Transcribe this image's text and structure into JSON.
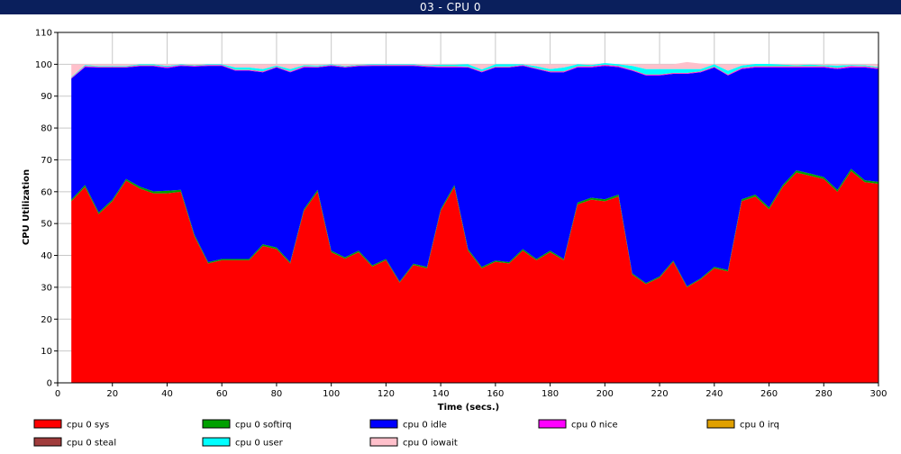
{
  "window": {
    "title": "03 - CPU 0"
  },
  "chart_data": {
    "type": "area",
    "stacked": true,
    "title": "03 - CPU 0",
    "xlabel": "Time (secs.)",
    "ylabel": "CPU Utilization",
    "xlim": [
      0,
      300
    ],
    "ylim": [
      0,
      110
    ],
    "xticks": [
      0,
      20,
      40,
      60,
      80,
      100,
      120,
      140,
      160,
      180,
      200,
      220,
      240,
      260,
      280,
      300
    ],
    "yticks": [
      0,
      10,
      20,
      30,
      40,
      50,
      60,
      70,
      80,
      90,
      100,
      110
    ],
    "grid": true,
    "legend_position": "bottom",
    "x": [
      5,
      10,
      15,
      20,
      25,
      30,
      35,
      40,
      45,
      50,
      55,
      60,
      65,
      70,
      75,
      80,
      85,
      90,
      95,
      100,
      105,
      110,
      115,
      120,
      125,
      130,
      135,
      140,
      145,
      150,
      155,
      160,
      165,
      170,
      175,
      180,
      185,
      190,
      195,
      200,
      205,
      210,
      215,
      220,
      225,
      230,
      235,
      240,
      245,
      250,
      255,
      260,
      265,
      270,
      275,
      280,
      285,
      290,
      295,
      300
    ],
    "series": [
      {
        "name": "cpu 0 sys",
        "color": "#ff0000",
        "values": [
          57,
          61.5,
          53,
          57,
          63.5,
          61,
          59.5,
          59.5,
          60,
          46,
          37.5,
          38.5,
          38.5,
          38.5,
          43,
          42,
          37.5,
          54,
          60,
          41,
          39,
          41,
          36.5,
          38.5,
          31.5,
          37,
          36,
          54,
          61.5,
          41.5,
          36,
          38,
          37.5,
          41.5,
          38.5,
          41,
          38.5,
          56,
          57.5,
          57,
          58.5,
          34,
          31,
          33,
          38,
          30,
          32.5,
          36,
          35,
          57,
          58.5,
          54.5,
          61.5,
          66,
          65,
          64,
          60,
          66.5,
          63,
          62.5
        ]
      },
      {
        "name": "cpu 0 softirq",
        "color": "#00a000",
        "values": [
          0.5,
          0.6,
          0.5,
          0.5,
          0.5,
          0.6,
          0.6,
          0.8,
          0.6,
          0.5,
          0.4,
          0.4,
          0.4,
          0.4,
          0.5,
          0.5,
          0.4,
          0.5,
          0.6,
          0.5,
          0.4,
          0.5,
          0.4,
          0.4,
          0.3,
          0.4,
          0.4,
          0.5,
          0.6,
          0.5,
          0.4,
          0.4,
          0.4,
          0.5,
          0.4,
          0.5,
          0.4,
          0.6,
          0.6,
          0.6,
          0.6,
          0.4,
          0.3,
          0.4,
          0.4,
          0.3,
          0.3,
          0.4,
          0.4,
          0.6,
          0.6,
          0.6,
          0.6,
          0.7,
          0.7,
          0.6,
          0.6,
          0.7,
          0.6,
          0.6
        ]
      },
      {
        "name": "cpu 0 idle",
        "color": "#0000ff",
        "values": [
          38,
          37,
          45.5,
          41.5,
          35,
          37.8,
          39.3,
          38.5,
          38.9,
          52.8,
          61.6,
          60.6,
          59.1,
          59.1,
          54,
          56.5,
          59.6,
          44.5,
          38.4,
          58,
          59.6,
          57.9,
          62.6,
          60.6,
          67.7,
          62.1,
          62.8,
          44.5,
          36.9,
          57,
          61.1,
          60.6,
          61.1,
          57.5,
          59.6,
          56,
          58.6,
          42.4,
          40.9,
          41.9,
          40,
          63.6,
          65.2,
          63.1,
          58.6,
          66.7,
          64.7,
          62.6,
          61.1,
          40.9,
          39.9,
          43.9,
          36.9,
          32.3,
          33.3,
          34.4,
          37.9,
          31.8,
          35.4,
          35.4
        ]
      },
      {
        "name": "cpu 0 nice",
        "color": "#ff00ff",
        "values": [
          0.2,
          0.3,
          0.2,
          0.2,
          0.2,
          0.2,
          0.2,
          0.3,
          0.2,
          0.2,
          0.2,
          0.2,
          0.2,
          0.2,
          0.2,
          0.2,
          0.2,
          0.3,
          0.2,
          0.2,
          0.2,
          0.2,
          0.2,
          0.2,
          0.2,
          0.2,
          0.2,
          0.3,
          0.3,
          0.2,
          0.2,
          0.2,
          0.2,
          0.2,
          0.2,
          0.2,
          0.2,
          0.3,
          0.3,
          0.3,
          0.3,
          0.2,
          0.2,
          0.2,
          0.2,
          0.2,
          0.2,
          0.2,
          0.2,
          0.3,
          0.3,
          0.3,
          0.3,
          0.3,
          0.3,
          0.3,
          0.3,
          0.4,
          0.3,
          0.3
        ]
      },
      {
        "name": "cpu 0 irq",
        "color": "#e0a000",
        "values": [
          0.1,
          0.1,
          0.1,
          0.1,
          0.1,
          0.1,
          0.1,
          0.1,
          0.1,
          0.1,
          0.1,
          0.1,
          0.1,
          0.1,
          0.1,
          0.1,
          0.1,
          0.1,
          0.1,
          0.1,
          0.1,
          0.1,
          0.1,
          0.1,
          0.1,
          0.1,
          0.1,
          0.1,
          0.1,
          0.1,
          0.1,
          0.1,
          0.1,
          0.1,
          0.1,
          0.1,
          0.1,
          0.1,
          0.1,
          0.1,
          0.1,
          0.1,
          0.1,
          0.1,
          0.1,
          0.1,
          0.1,
          0.1,
          0.1,
          0.1,
          0.1,
          0.1,
          0.1,
          0.1,
          0.1,
          0.1,
          0.1,
          0.1,
          0.1,
          0.1
        ]
      },
      {
        "name": "cpu 0 steal",
        "color": "#a03c3c",
        "values": [
          0,
          0,
          0,
          0,
          0,
          0,
          0,
          0,
          0,
          0,
          0,
          0,
          0,
          0,
          0,
          0,
          0,
          0,
          0,
          0,
          0,
          0,
          0,
          0,
          0,
          0,
          0,
          0,
          0,
          0,
          0,
          0,
          0,
          0,
          0,
          0,
          0,
          0,
          0,
          0,
          0,
          0,
          0,
          0,
          0,
          0,
          0,
          0,
          0,
          0,
          0,
          0,
          0,
          0,
          0,
          0,
          0,
          0,
          0,
          0
        ]
      },
      {
        "name": "cpu 0 user",
        "color": "#00ffff",
        "values": [
          0.2,
          0.3,
          0.2,
          0.2,
          0.2,
          0.3,
          0.3,
          0.3,
          0.2,
          0.2,
          0.2,
          0.2,
          0.7,
          0.7,
          0.7,
          0.3,
          0.7,
          0.3,
          0.3,
          0.2,
          0.2,
          0.2,
          0.2,
          0.2,
          0.2,
          0.2,
          0.2,
          0.5,
          0.5,
          0.7,
          0.6,
          0.7,
          0.7,
          0.2,
          0.6,
          0.7,
          1.2,
          0.6,
          0.4,
          0.5,
          0.5,
          1.2,
          1.7,
          1.7,
          1.2,
          1.2,
          0.7,
          0.7,
          1.2,
          0.7,
          0.7,
          0.7,
          0.5,
          0.3,
          0.5,
          0.3,
          0.7,
          0.3,
          0.3,
          0.3
        ]
      },
      {
        "name": "cpu 0 iowait",
        "color": "#ffc0cb",
        "values": [
          4,
          0.2,
          0.5,
          0.5,
          0.5,
          0,
          0,
          0.5,
          0,
          0.2,
          0,
          0,
          1,
          1,
          1.5,
          0.4,
          1.5,
          0.3,
          0.4,
          0,
          0.5,
          0.1,
          0,
          0,
          0,
          0,
          0.3,
          0.1,
          0.1,
          0,
          1.6,
          0,
          0,
          0,
          0.6,
          1.5,
          1,
          0,
          0.2,
          0,
          0,
          0.5,
          1.5,
          1.5,
          1.5,
          2.2,
          1.7,
          0,
          2,
          0.4,
          0,
          0,
          0.1,
          0.3,
          0.1,
          0.3,
          0.4,
          0.2,
          0.3,
          0.8
        ]
      }
    ]
  }
}
